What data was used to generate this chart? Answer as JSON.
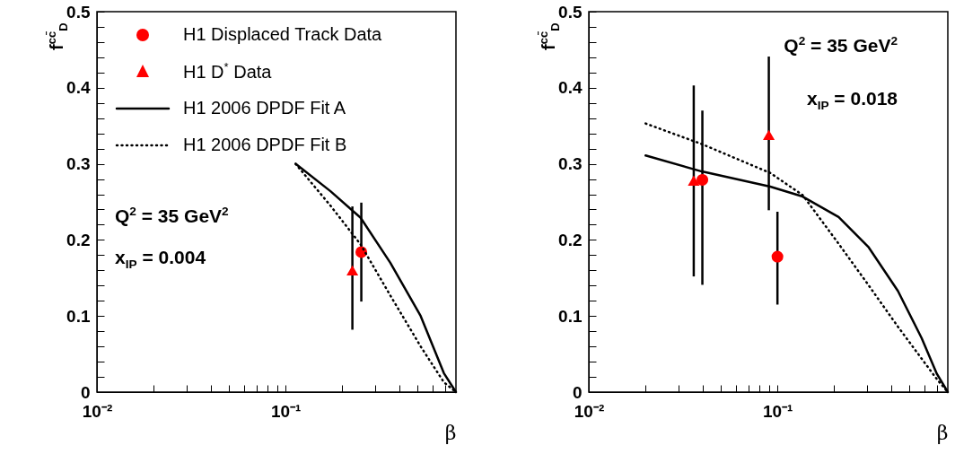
{
  "chart_data": [
    {
      "type": "scatter",
      "xlabel": "β",
      "ylabel": "f$^{cc̄}$$_{D}$",
      "log": "x",
      "legend": "top",
      "grid": false,
      "xlim": [
        0.01,
        0.8
      ],
      "xticks": [
        {
          "value": 0.01,
          "label": "10⁻²"
        },
        {
          "value": 0.02,
          "label": null
        },
        {
          "value": 0.03,
          "label": null
        },
        {
          "value": 0.04,
          "label": null
        },
        {
          "value": 0.05,
          "label": null
        },
        {
          "value": 0.06,
          "label": null
        },
        {
          "value": 0.07,
          "label": null
        },
        {
          "value": 0.08,
          "label": null
        },
        {
          "value": 0.09,
          "label": null
        },
        {
          "value": 0.1,
          "label": "10⁻¹"
        },
        {
          "value": 0.2,
          "label": null
        },
        {
          "value": 0.3,
          "label": null
        },
        {
          "value": 0.4,
          "label": null
        },
        {
          "value": 0.5,
          "label": null
        },
        {
          "value": 0.6,
          "label": null
        },
        {
          "value": 0.7,
          "label": null
        }
      ],
      "ylim": [
        0,
        0.5
      ],
      "yticks": [
        0,
        {
          "value": 0.02,
          "label": null
        },
        {
          "value": 0.04,
          "label": null
        },
        {
          "value": 0.06,
          "label": null
        },
        {
          "value": 0.08,
          "label": null
        },
        0.1,
        {
          "value": 0.12,
          "label": null
        },
        {
          "value": 0.14,
          "label": null
        },
        {
          "value": 0.16,
          "label": null
        },
        {
          "value": 0.18,
          "label": null
        },
        0.2,
        {
          "value": 0.22,
          "label": null
        },
        {
          "value": 0.24,
          "label": null
        },
        {
          "value": 0.26,
          "label": null
        },
        {
          "value": 0.28,
          "label": null
        },
        0.3,
        {
          "value": 0.32,
          "label": null
        },
        {
          "value": 0.34,
          "label": null
        },
        {
          "value": 0.36,
          "label": null
        },
        {
          "value": 0.38,
          "label": null
        },
        0.4,
        {
          "value": 0.42,
          "label": null
        },
        {
          "value": 0.44,
          "label": null
        },
        {
          "value": 0.46,
          "label": null
        },
        {
          "value": 0.48,
          "label": null
        },
        0.5
      ],
      "annotations": [
        "Q$^{2}$ = 35 GeV$^{2}$",
        "x$_{IP}$ = 0.004"
      ],
      "series": [
        {
          "name": "H1 Displaced Track Data",
          "marker": "circle",
          "color": "#ff0000",
          "x": [
            0.252
          ],
          "values": [
            0.184
          ],
          "errors": [
            [
              0.119,
              0.249
            ]
          ]
        },
        {
          "name": "H1 D$^{*}$ Data",
          "marker": "triangle",
          "color": "#ff0000",
          "x": [
            0.226
          ],
          "values": [
            0.16
          ],
          "errors": [
            [
              0.082,
              0.244
            ]
          ]
        },
        {
          "name": "H1 2006 DPDF Fit A",
          "type": "line",
          "line_style": "solid",
          "marker": "none",
          "color": "#000000",
          "x": [
            0.113,
            0.173,
            0.25,
            0.359,
            0.52,
            0.69,
            0.8
          ],
          "values": [
            0.3,
            0.264,
            0.229,
            0.17,
            0.1,
            0.025,
            0
          ]
        },
        {
          "name": "H1 2006 DPDF Fit B",
          "type": "line",
          "line_style": "dotted",
          "marker": "none",
          "color": "#000000",
          "x": [
            0.113,
            0.173,
            0.25,
            0.359,
            0.52,
            0.69,
            0.8
          ],
          "values": [
            0.3,
            0.245,
            0.194,
            0.127,
            0.06,
            0.013,
            0
          ]
        }
      ]
    },
    {
      "type": "scatter",
      "xlabel": "β",
      "ylabel": "f$^{cc̄}$$_{D}$",
      "log": "x",
      "grid": false,
      "xlim": [
        0.01,
        0.8
      ],
      "xticks": [
        {
          "value": 0.01,
          "label": "10⁻²"
        },
        {
          "value": 0.02,
          "label": null
        },
        {
          "value": 0.03,
          "label": null
        },
        {
          "value": 0.04,
          "label": null
        },
        {
          "value": 0.05,
          "label": null
        },
        {
          "value": 0.06,
          "label": null
        },
        {
          "value": 0.07,
          "label": null
        },
        {
          "value": 0.08,
          "label": null
        },
        {
          "value": 0.09,
          "label": null
        },
        {
          "value": 0.1,
          "label": "10⁻¹"
        },
        {
          "value": 0.2,
          "label": null
        },
        {
          "value": 0.3,
          "label": null
        },
        {
          "value": 0.4,
          "label": null
        },
        {
          "value": 0.5,
          "label": null
        },
        {
          "value": 0.6,
          "label": null
        },
        {
          "value": 0.7,
          "label": null
        }
      ],
      "ylim": [
        0,
        0.5
      ],
      "yticks": [
        0,
        {
          "value": 0.02,
          "label": null
        },
        {
          "value": 0.04,
          "label": null
        },
        {
          "value": 0.06,
          "label": null
        },
        {
          "value": 0.08,
          "label": null
        },
        0.1,
        {
          "value": 0.12,
          "label": null
        },
        {
          "value": 0.14,
          "label": null
        },
        {
          "value": 0.16,
          "label": null
        },
        {
          "value": 0.18,
          "label": null
        },
        0.2,
        {
          "value": 0.22,
          "label": null
        },
        {
          "value": 0.24,
          "label": null
        },
        {
          "value": 0.26,
          "label": null
        },
        {
          "value": 0.28,
          "label": null
        },
        0.3,
        {
          "value": 0.32,
          "label": null
        },
        {
          "value": 0.34,
          "label": null
        },
        {
          "value": 0.36,
          "label": null
        },
        {
          "value": 0.38,
          "label": null
        },
        0.4,
        {
          "value": 0.42,
          "label": null
        },
        {
          "value": 0.44,
          "label": null
        },
        {
          "value": 0.46,
          "label": null
        },
        {
          "value": 0.48,
          "label": null
        },
        0.5
      ],
      "annotations": [
        "Q$^{2}$ = 35 GeV$^{2}$",
        "x$_{IP}$ = 0.018"
      ],
      "series": [
        {
          "marker": "circle",
          "color": "#ff0000",
          "x": [
            0.04,
            0.1
          ],
          "values": [
            0.279,
            0.178
          ],
          "errors": [
            [
              0.141,
              0.37
            ],
            [
              0.115,
              0.237
            ]
          ]
        },
        {
          "marker": "triangle",
          "color": "#ff0000",
          "x": [
            0.036,
            0.09
          ],
          "values": [
            0.278,
            0.338
          ],
          "errors": [
            [
              0.152,
              0.403
            ],
            [
              0.239,
              0.441
            ]
          ]
        },
        {
          "type": "line",
          "line_style": "solid",
          "marker": "none",
          "color": "#000000",
          "x": [
            0.02,
            0.0397,
            0.0916,
            0.136,
            0.211,
            0.303,
            0.435,
            0.581,
            0.7,
            0.8
          ],
          "values": [
            0.311,
            0.29,
            0.27,
            0.257,
            0.23,
            0.191,
            0.133,
            0.071,
            0.024,
            0
          ]
        },
        {
          "type": "line",
          "line_style": "dotted",
          "marker": "none",
          "color": "#000000",
          "x": [
            0.02,
            0.0397,
            0.0916,
            0.136,
            0.211,
            0.303,
            0.435,
            0.581,
            0.7,
            0.8
          ],
          "values": [
            0.353,
            0.326,
            0.288,
            0.259,
            0.195,
            0.141,
            0.086,
            0.044,
            0.017,
            0
          ]
        }
      ]
    }
  ]
}
